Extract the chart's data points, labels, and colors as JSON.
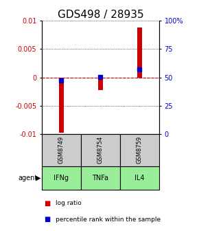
{
  "title": "GDS498 / 28935",
  "samples": [
    "GSM8749",
    "GSM8754",
    "GSM8759"
  ],
  "agents": [
    "IFNg",
    "TNFa",
    "IL4"
  ],
  "log_ratios": [
    -0.0098,
    -0.0022,
    0.0088
  ],
  "percentile_ranks": [
    47,
    50.5,
    57
  ],
  "ylim_left": [
    -0.01,
    0.01
  ],
  "ylim_right": [
    0,
    100
  ],
  "yticks_left": [
    -0.01,
    -0.005,
    0,
    0.005,
    0.01
  ],
  "yticks_left_labels": [
    "-0.01",
    "-0.005",
    "0",
    "0.005",
    "0.01"
  ],
  "yticks_right": [
    0,
    25,
    50,
    75,
    100
  ],
  "yticks_right_labels": [
    "0",
    "25",
    "50",
    "75",
    "100%"
  ],
  "bar_color": "#cc0000",
  "dot_color": "#0000cc",
  "zero_line_color": "#cc0000",
  "sample_box_color": "#cccccc",
  "agent_box_color": "#99ee99",
  "title_fontsize": 11,
  "tick_fontsize": 7,
  "bar_width": 0.12,
  "dot_size": 4
}
